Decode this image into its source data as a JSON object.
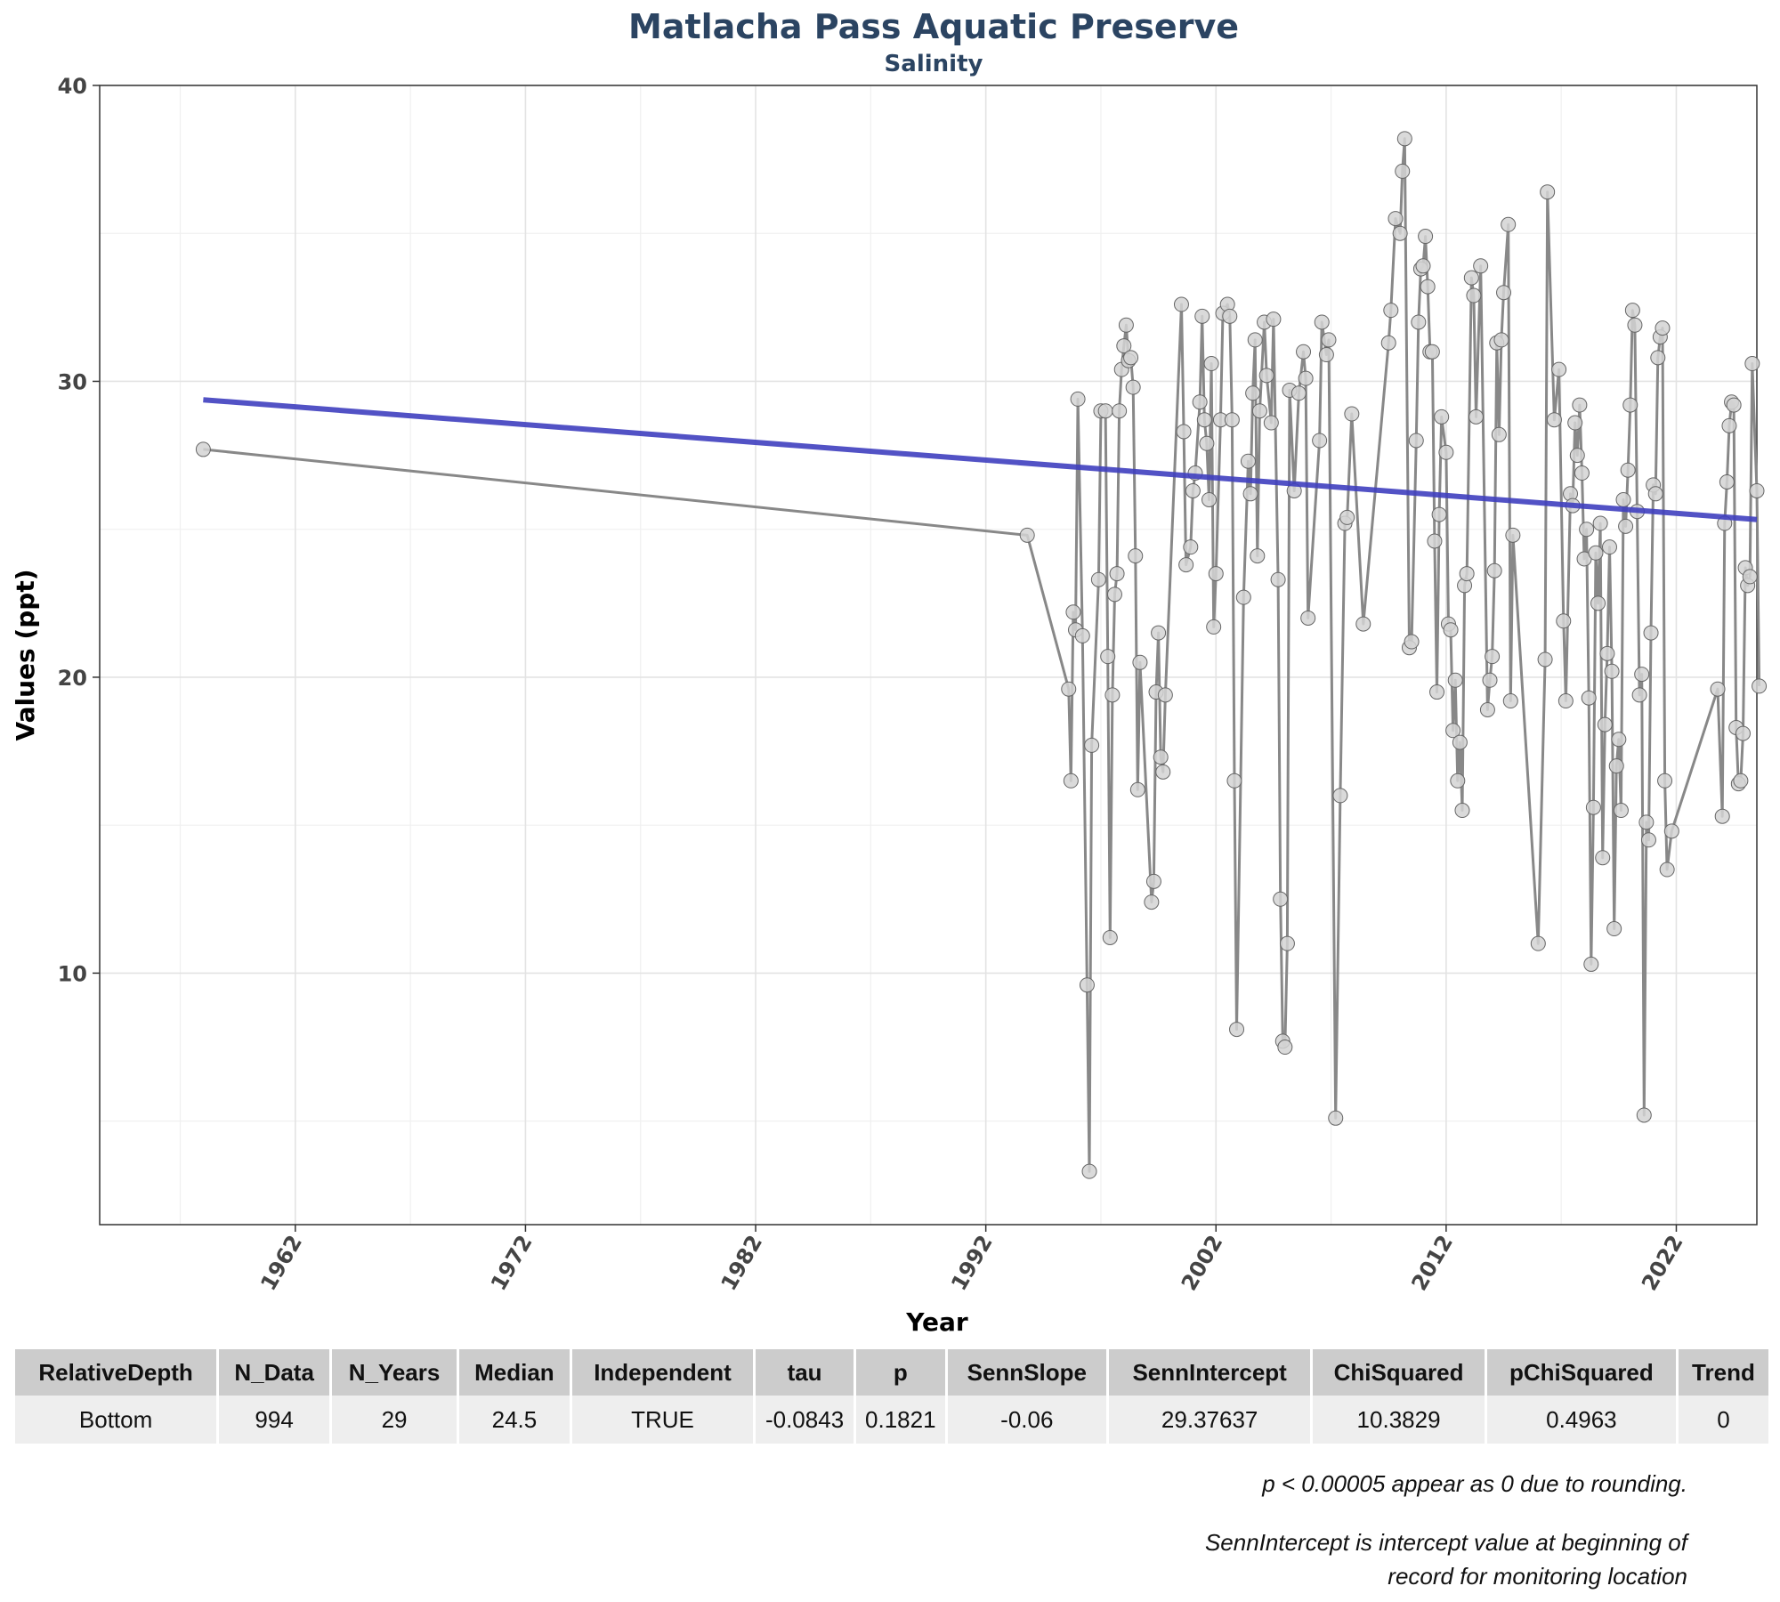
{
  "chart_data": {
    "type": "line",
    "title": "Matlacha Pass Aquatic Preserve",
    "subtitle": "Salinity",
    "xlabel": "Year",
    "ylabel": "Values (ppt)",
    "xlim": [
      1953.5,
      2025.5
    ],
    "ylim": [
      1.5,
      40
    ],
    "x_ticks": [
      1962,
      1972,
      1982,
      1992,
      2002,
      2012,
      2022
    ],
    "y_ticks": [
      10,
      20,
      30,
      40
    ],
    "grid": true,
    "series": [
      {
        "color": "#888888",
        "marker_fill": "#d3d3d3",
        "points": [
          [
            1958.0,
            27.7
          ],
          [
            1993.8,
            24.8
          ],
          [
            1995.6,
            19.6
          ],
          [
            1995.7,
            16.5
          ],
          [
            1995.8,
            22.2
          ],
          [
            1995.9,
            21.6
          ],
          [
            1996.0,
            29.4
          ],
          [
            1996.2,
            21.4
          ],
          [
            1996.4,
            9.6
          ],
          [
            1996.5,
            3.3
          ],
          [
            1996.6,
            17.7
          ],
          [
            1996.9,
            23.3
          ],
          [
            1997.0,
            29.0
          ],
          [
            1997.2,
            29.0
          ],
          [
            1997.3,
            20.7
          ],
          [
            1997.4,
            11.2
          ],
          [
            1997.5,
            19.4
          ],
          [
            1997.6,
            22.8
          ],
          [
            1997.7,
            23.5
          ],
          [
            1997.8,
            29.0
          ],
          [
            1997.9,
            30.4
          ],
          [
            1998.0,
            31.2
          ],
          [
            1998.1,
            31.9
          ],
          [
            1998.2,
            30.7
          ],
          [
            1998.3,
            30.8
          ],
          [
            1998.4,
            29.8
          ],
          [
            1998.5,
            24.1
          ],
          [
            1998.6,
            16.2
          ],
          [
            1998.7,
            20.5
          ],
          [
            1999.2,
            12.4
          ],
          [
            1999.3,
            13.1
          ],
          [
            1999.4,
            19.5
          ],
          [
            1999.5,
            21.5
          ],
          [
            1999.6,
            17.3
          ],
          [
            1999.7,
            16.8
          ],
          [
            1999.8,
            19.4
          ],
          [
            2000.5,
            32.6
          ],
          [
            2000.6,
            28.3
          ],
          [
            2000.7,
            23.8
          ],
          [
            2000.9,
            24.4
          ],
          [
            2001.0,
            26.3
          ],
          [
            2001.1,
            26.9
          ],
          [
            2001.3,
            29.3
          ],
          [
            2001.4,
            32.2
          ],
          [
            2001.5,
            28.7
          ],
          [
            2001.6,
            27.9
          ],
          [
            2001.7,
            26.0
          ],
          [
            2001.8,
            30.6
          ],
          [
            2001.9,
            21.7
          ],
          [
            2002.0,
            23.5
          ],
          [
            2002.2,
            28.7
          ],
          [
            2002.3,
            32.3
          ],
          [
            2002.5,
            32.6
          ],
          [
            2002.6,
            32.2
          ],
          [
            2002.7,
            28.7
          ],
          [
            2002.8,
            16.5
          ],
          [
            2002.9,
            8.1
          ],
          [
            2003.2,
            22.7
          ],
          [
            2003.4,
            27.3
          ],
          [
            2003.5,
            26.2
          ],
          [
            2003.6,
            29.6
          ],
          [
            2003.7,
            31.4
          ],
          [
            2003.8,
            24.1
          ],
          [
            2003.9,
            29.0
          ],
          [
            2004.1,
            32.0
          ],
          [
            2004.2,
            30.2
          ],
          [
            2004.4,
            28.6
          ],
          [
            2004.5,
            32.1
          ],
          [
            2004.7,
            23.3
          ],
          [
            2004.8,
            12.5
          ],
          [
            2004.9,
            7.7
          ],
          [
            2005.0,
            7.5
          ],
          [
            2005.1,
            11.0
          ],
          [
            2005.2,
            29.7
          ],
          [
            2005.4,
            26.3
          ],
          [
            2005.6,
            29.6
          ],
          [
            2005.8,
            31.0
          ],
          [
            2005.9,
            30.1
          ],
          [
            2006.0,
            22.0
          ],
          [
            2006.5,
            28.0
          ],
          [
            2006.6,
            32.0
          ],
          [
            2006.8,
            30.9
          ],
          [
            2006.9,
            31.4
          ],
          [
            2007.2,
            5.1
          ],
          [
            2007.4,
            16.0
          ],
          [
            2007.6,
            25.2
          ],
          [
            2007.7,
            25.4
          ],
          [
            2007.9,
            28.9
          ],
          [
            2008.4,
            21.8
          ],
          [
            2009.5,
            31.3
          ],
          [
            2009.6,
            32.4
          ],
          [
            2009.8,
            35.5
          ],
          [
            2010.0,
            35.0
          ],
          [
            2010.1,
            37.1
          ],
          [
            2010.2,
            38.2
          ],
          [
            2010.4,
            21.0
          ],
          [
            2010.5,
            21.2
          ],
          [
            2010.7,
            28.0
          ],
          [
            2010.8,
            32.0
          ],
          [
            2010.9,
            33.8
          ],
          [
            2011.0,
            33.9
          ],
          [
            2011.1,
            34.9
          ],
          [
            2011.2,
            33.2
          ],
          [
            2011.3,
            31.0
          ],
          [
            2011.4,
            31.0
          ],
          [
            2011.5,
            24.6
          ],
          [
            2011.6,
            19.5
          ],
          [
            2011.7,
            25.5
          ],
          [
            2011.8,
            28.8
          ],
          [
            2012.0,
            27.6
          ],
          [
            2012.1,
            21.8
          ],
          [
            2012.2,
            21.6
          ],
          [
            2012.3,
            18.2
          ],
          [
            2012.4,
            19.9
          ],
          [
            2012.5,
            16.5
          ],
          [
            2012.6,
            17.8
          ],
          [
            2012.7,
            15.5
          ],
          [
            2012.8,
            23.1
          ],
          [
            2012.9,
            23.5
          ],
          [
            2013.1,
            33.5
          ],
          [
            2013.2,
            32.9
          ],
          [
            2013.3,
            28.8
          ],
          [
            2013.5,
            33.9
          ],
          [
            2013.8,
            18.9
          ],
          [
            2013.9,
            19.9
          ],
          [
            2014.0,
            20.7
          ],
          [
            2014.1,
            23.6
          ],
          [
            2014.2,
            31.3
          ],
          [
            2014.3,
            28.2
          ],
          [
            2014.4,
            31.4
          ],
          [
            2014.5,
            33.0
          ],
          [
            2014.7,
            35.3
          ],
          [
            2014.8,
            19.2
          ],
          [
            2014.9,
            24.8
          ],
          [
            2016.0,
            11.0
          ],
          [
            2016.3,
            20.6
          ],
          [
            2016.4,
            36.4
          ],
          [
            2016.7,
            28.7
          ],
          [
            2016.9,
            30.4
          ],
          [
            2017.1,
            21.9
          ],
          [
            2017.2,
            19.2
          ],
          [
            2017.4,
            26.2
          ],
          [
            2017.5,
            25.8
          ],
          [
            2017.6,
            28.6
          ],
          [
            2017.7,
            27.5
          ],
          [
            2017.8,
            29.2
          ],
          [
            2017.9,
            26.9
          ],
          [
            2018.0,
            24.0
          ],
          [
            2018.1,
            25.0
          ],
          [
            2018.2,
            19.3
          ],
          [
            2018.3,
            10.3
          ],
          [
            2018.4,
            15.6
          ],
          [
            2018.5,
            24.2
          ],
          [
            2018.6,
            22.5
          ],
          [
            2018.7,
            25.2
          ],
          [
            2018.8,
            13.9
          ],
          [
            2018.9,
            18.4
          ],
          [
            2019.0,
            20.8
          ],
          [
            2019.1,
            24.4
          ],
          [
            2019.2,
            20.2
          ],
          [
            2019.3,
            11.5
          ],
          [
            2019.4,
            17.0
          ],
          [
            2019.5,
            17.9
          ],
          [
            2019.6,
            15.5
          ],
          [
            2019.7,
            26.0
          ],
          [
            2019.8,
            25.1
          ],
          [
            2019.9,
            27.0
          ],
          [
            2020.0,
            29.2
          ],
          [
            2020.1,
            32.4
          ],
          [
            2020.2,
            31.9
          ],
          [
            2020.3,
            25.6
          ],
          [
            2020.4,
            19.4
          ],
          [
            2020.5,
            20.1
          ],
          [
            2020.6,
            5.2
          ],
          [
            2020.7,
            15.1
          ],
          [
            2020.8,
            14.5
          ],
          [
            2020.9,
            21.5
          ],
          [
            2021.0,
            26.5
          ],
          [
            2021.1,
            26.2
          ],
          [
            2021.2,
            30.8
          ],
          [
            2021.3,
            31.5
          ],
          [
            2021.4,
            31.8
          ],
          [
            2021.5,
            16.5
          ],
          [
            2021.6,
            13.5
          ],
          [
            2021.8,
            14.8
          ],
          [
            2023.8,
            19.6
          ],
          [
            2024.0,
            15.3
          ],
          [
            2024.1,
            25.2
          ],
          [
            2024.2,
            26.6
          ],
          [
            2024.3,
            28.5
          ],
          [
            2024.4,
            29.3
          ],
          [
            2024.5,
            29.2
          ],
          [
            2024.6,
            18.3
          ],
          [
            2024.7,
            16.4
          ],
          [
            2024.8,
            16.5
          ],
          [
            2024.9,
            18.1
          ],
          [
            2025.0,
            23.7
          ],
          [
            2025.1,
            23.1
          ],
          [
            2025.2,
            23.4
          ],
          [
            2025.3,
            30.6
          ],
          [
            2025.5,
            26.3
          ],
          [
            2025.6,
            19.7
          ]
        ]
      }
    ],
    "trend_line": {
      "color": "#3f3fbf",
      "x": [
        1958.0,
        2025.5
      ],
      "y": [
        29.37637,
        25.33
      ]
    }
  },
  "table": {
    "headers": [
      "RelativeDepth",
      "N_Data",
      "N_Years",
      "Median",
      "Independent",
      "tau",
      "p",
      "SennSlope",
      "SennIntercept",
      "ChiSquared",
      "pChiSquared",
      "Trend"
    ],
    "rows": [
      [
        "Bottom",
        "994",
        "29",
        "24.5",
        "TRUE",
        "-0.0843",
        "0.1821",
        "-0.06",
        "29.37637",
        "10.3829",
        "0.4963",
        "0"
      ]
    ]
  },
  "notes": {
    "rounding": "p < 0.00005 appear as 0 due to rounding.",
    "intercept_line1": "SennIntercept is intercept value at beginning of",
    "intercept_line2": "record for monitoring location"
  }
}
